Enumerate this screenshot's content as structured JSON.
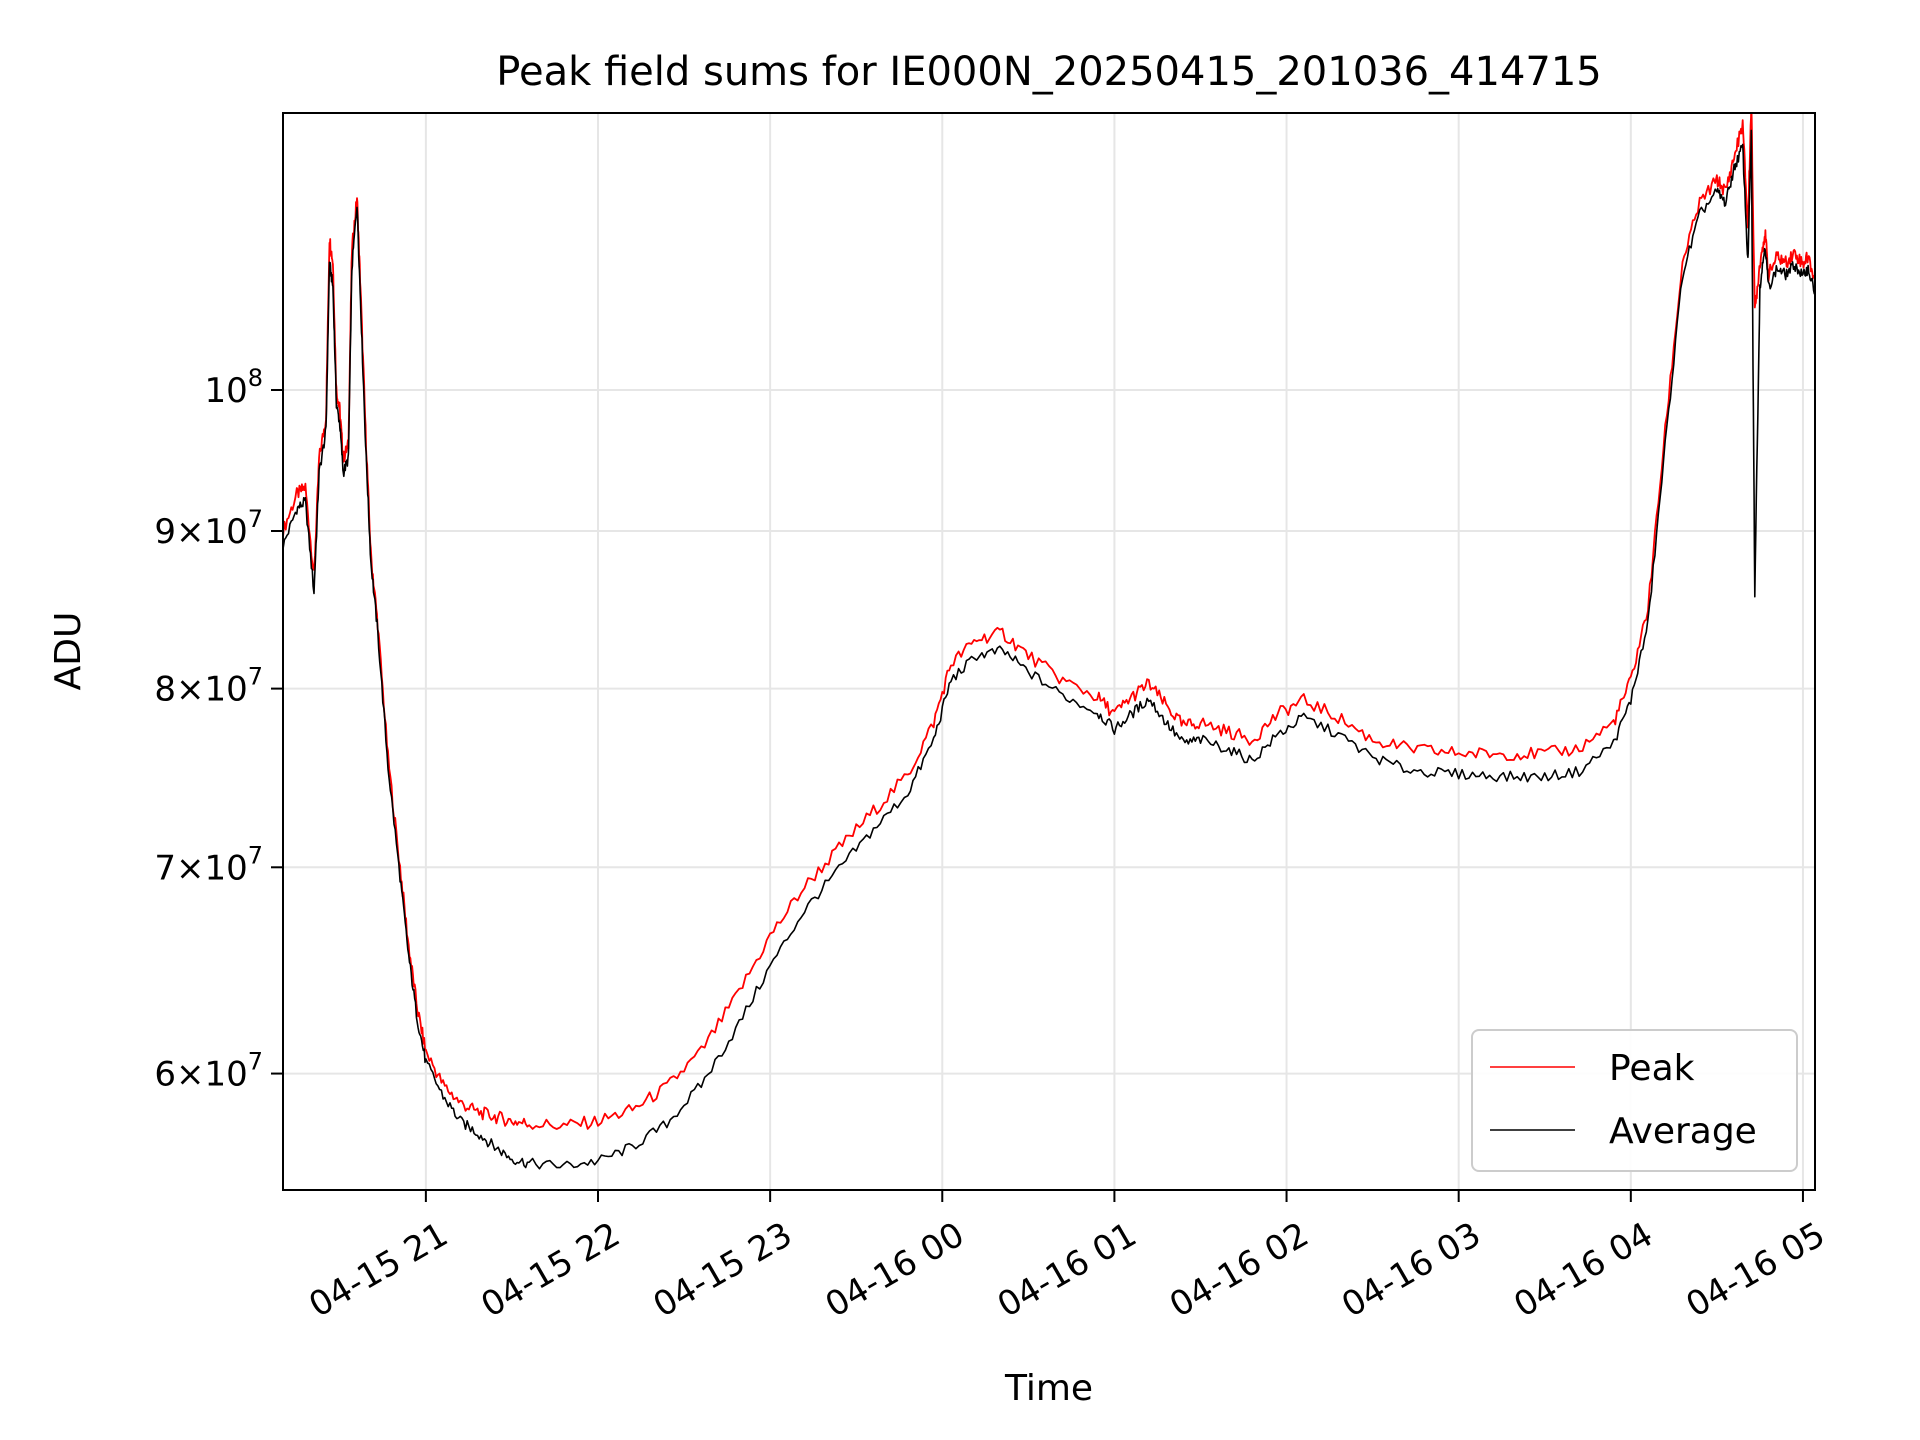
{
  "chart_data": {
    "type": "line",
    "title": "Peak field sums for IE000N_20250415_201036_414715",
    "xlabel": "Time",
    "ylabel": "ADU",
    "y_scale": "log",
    "x_unit": "hours",
    "xlim": [
      20.17,
      29.07
    ],
    "ylim": [
      55000000,
      123000000
    ],
    "grid": true,
    "legend_position": "lower-right",
    "x_ticks": [
      {
        "value": 21,
        "label": "04-15 21"
      },
      {
        "value": 22,
        "label": "04-15 22"
      },
      {
        "value": 23,
        "label": "04-15 23"
      },
      {
        "value": 24,
        "label": "04-16 00"
      },
      {
        "value": 25,
        "label": "04-16 01"
      },
      {
        "value": 26,
        "label": "04-16 02"
      },
      {
        "value": 27,
        "label": "04-16 03"
      },
      {
        "value": 28,
        "label": "04-16 04"
      },
      {
        "value": 29,
        "label": "04-16 05"
      }
    ],
    "y_ticks": [
      {
        "value": 60000000,
        "mant": "6×10",
        "exp": "7"
      },
      {
        "value": 70000000,
        "mant": "7×10",
        "exp": "7"
      },
      {
        "value": 80000000,
        "mant": "8×10",
        "exp": "7"
      },
      {
        "value": 90000000,
        "mant": "9×10",
        "exp": "7"
      },
      {
        "value": 100000000,
        "mant": "10",
        "exp": "8"
      }
    ],
    "series": [
      {
        "name": "Peak",
        "color": "#ff0000",
        "x": [
          20.17,
          20.25,
          20.3,
          20.35,
          20.38,
          20.42,
          20.44,
          20.46,
          20.48,
          20.5,
          20.52,
          20.55,
          20.57,
          20.6,
          20.62,
          20.65,
          20.68,
          20.72,
          20.78,
          20.85,
          20.9,
          20.95,
          21.0,
          21.1,
          21.2,
          21.3,
          21.4,
          21.5,
          21.6,
          21.8,
          22.0,
          22.2,
          22.4,
          22.6,
          22.8,
          23.0,
          23.2,
          23.4,
          23.6,
          23.8,
          23.95,
          24.05,
          24.2,
          24.35,
          24.5,
          24.7,
          24.9,
          25.0,
          25.1,
          25.2,
          25.3,
          25.4,
          25.5,
          25.65,
          25.8,
          25.95,
          26.1,
          26.3,
          26.5,
          26.7,
          26.9,
          27.1,
          27.3,
          27.5,
          27.7,
          27.9,
          28.0,
          28.1,
          28.2,
          28.3,
          28.4,
          28.5,
          28.55,
          28.6,
          28.65,
          28.68,
          28.7,
          28.72,
          28.75,
          28.78,
          28.8,
          28.85,
          28.9,
          28.95,
          29.0,
          29.03,
          29.07
        ],
        "y": [
          90000000,
          92500000,
          93000000,
          87000000,
          95000000,
          98000000,
          112000000,
          110000000,
          100000000,
          98500000,
          95000000,
          96000000,
          111000000,
          115500000,
          108000000,
          97000000,
          88500000,
          84000000,
          76000000,
          70000000,
          66000000,
          63000000,
          61000000,
          59500000,
          58700000,
          58300000,
          58100000,
          57900000,
          57800000,
          57700000,
          57900000,
          58400000,
          59400000,
          61000000,
          63500000,
          66500000,
          69000000,
          71000000,
          73000000,
          75000000,
          78000000,
          81500000,
          83000000,
          83400000,
          82000000,
          80500000,
          79500000,
          78500000,
          79500000,
          80300000,
          79000000,
          77800000,
          78000000,
          77500000,
          77000000,
          78500000,
          79300000,
          78300000,
          77000000,
          76500000,
          76300000,
          76200000,
          76200000,
          76200000,
          76500000,
          78000000,
          80500000,
          85000000,
          97000000,
          110000000,
          115000000,
          117000000,
          116000000,
          119000000,
          122000000,
          113000000,
          124000000,
          106000000,
          110000000,
          112500000,
          109000000,
          110500000,
          110000000,
          110800000,
          109900000,
          110500000,
          108500000
        ]
      },
      {
        "name": "Average",
        "color": "#000000",
        "x": [
          20.17,
          20.25,
          20.3,
          20.35,
          20.38,
          20.42,
          20.44,
          20.46,
          20.48,
          20.5,
          20.52,
          20.55,
          20.57,
          20.6,
          20.62,
          20.65,
          20.68,
          20.72,
          20.78,
          20.85,
          20.9,
          20.95,
          21.0,
          21.1,
          21.2,
          21.3,
          21.4,
          21.5,
          21.6,
          21.8,
          22.0,
          22.2,
          22.4,
          22.6,
          22.8,
          23.0,
          23.2,
          23.4,
          23.6,
          23.8,
          23.95,
          24.05,
          24.2,
          24.35,
          24.5,
          24.7,
          24.9,
          25.0,
          25.1,
          25.2,
          25.3,
          25.4,
          25.5,
          25.65,
          25.8,
          25.95,
          26.1,
          26.3,
          26.5,
          26.7,
          26.9,
          27.1,
          27.3,
          27.5,
          27.7,
          27.9,
          28.0,
          28.1,
          28.2,
          28.3,
          28.4,
          28.5,
          28.55,
          28.6,
          28.65,
          28.68,
          28.7,
          28.72,
          28.75,
          28.78,
          28.8,
          28.85,
          28.9,
          28.95,
          29.0,
          29.03,
          29.07
        ],
        "y": [
          89000000,
          91500000,
          92000000,
          86000000,
          94000000,
          97000000,
          110000000,
          108000000,
          99000000,
          97500000,
          94000000,
          95000000,
          109500000,
          115000000,
          107000000,
          96000000,
          88000000,
          83500000,
          75500000,
          69500000,
          65500000,
          62500000,
          60500000,
          59000000,
          57900000,
          57400000,
          56800000,
          56300000,
          56100000,
          56000000,
          56200000,
          56800000,
          57800000,
          59500000,
          62000000,
          65000000,
          67800000,
          69900000,
          72000000,
          74000000,
          77000000,
          80500000,
          82000000,
          82300000,
          81000000,
          79600000,
          78600000,
          77600000,
          78500000,
          79400000,
          78000000,
          76800000,
          77000000,
          76500000,
          75800000,
          77300000,
          78300000,
          77300000,
          76000000,
          75300000,
          75100000,
          75000000,
          74900000,
          74900000,
          75200000,
          76800000,
          79300000,
          84000000,
          96000000,
          109000000,
          114000000,
          116000000,
          115000000,
          118000000,
          120000000,
          110000000,
          121000000,
          86000000,
          108000000,
          111500000,
          108000000,
          109500000,
          109000000,
          109800000,
          108900000,
          109500000,
          107500000
        ]
      }
    ]
  }
}
